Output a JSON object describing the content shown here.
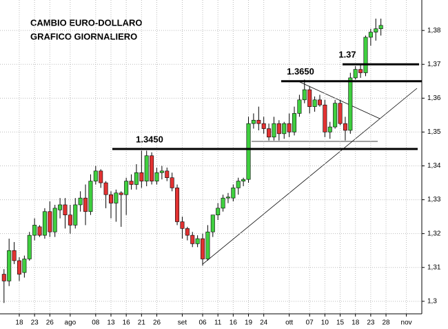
{
  "chart_data": {
    "type": "candlestick",
    "title": "CAMBIO EURO-DOLLARO",
    "subtitle": "GRAFICO GIORNALIERO",
    "categories": [
      null,
      null,
      null,
      "18",
      null,
      null,
      "23",
      null,
      null,
      "26",
      null,
      null,
      null,
      "ago",
      null,
      null,
      null,
      null,
      "08",
      null,
      null,
      "13",
      null,
      null,
      "16",
      null,
      null,
      "21",
      null,
      null,
      "26",
      null,
      null,
      null,
      null,
      "set",
      null,
      null,
      null,
      "06",
      null,
      null,
      "11",
      null,
      null,
      "16",
      null,
      null,
      "19",
      null,
      null,
      "24",
      null,
      null,
      null,
      null,
      "ott",
      null,
      null,
      null,
      "07",
      null,
      null,
      "10",
      null,
      null,
      "15",
      null,
      null,
      "18",
      null,
      null,
      "23",
      null,
      null,
      "28",
      null,
      null,
      null,
      "nov"
    ],
    "open": [
      1.308,
      1.306,
      1.315,
      1.312,
      1.3085,
      1.3125,
      1.3195,
      1.322,
      1.3195,
      1.3265,
      1.3205,
      1.327,
      1.3285,
      1.3255,
      1.3225,
      1.3285,
      1.3305,
      1.3265,
      1.3355,
      1.3385,
      1.335,
      1.3315,
      1.329,
      1.332,
      1.3315,
      1.3355,
      1.3345,
      1.338,
      1.3355,
      1.343,
      1.3355,
      1.338,
      1.3385,
      1.3365,
      1.3335,
      1.3235,
      1.3215,
      1.3195,
      1.317,
      1.3185,
      1.3125,
      1.3205,
      1.3255,
      1.3275,
      1.3305,
      1.3305,
      1.3335,
      1.3355,
      1.336,
      1.3525,
      1.3535,
      1.3525,
      1.351,
      1.3485,
      1.3525,
      1.3495,
      1.3525,
      1.35,
      1.3555,
      1.3595,
      1.3625,
      1.3575,
      1.3595,
      1.358,
      1.35,
      1.3515,
      1.3585,
      1.3525,
      1.3505,
      1.366,
      1.3685,
      1.3675,
      1.378,
      1.3795,
      1.3805,
      null,
      null,
      null,
      null,
      null
    ],
    "high": [
      1.3095,
      1.3185,
      1.3175,
      1.313,
      1.3135,
      1.3205,
      1.3245,
      1.3225,
      1.3275,
      1.3295,
      1.3285,
      1.3305,
      1.3305,
      1.3285,
      1.3305,
      1.3325,
      1.3345,
      1.3375,
      1.34,
      1.339,
      1.3355,
      1.3325,
      1.333,
      1.3325,
      1.3365,
      1.3375,
      1.3405,
      1.3445,
      1.3445,
      1.344,
      1.3395,
      1.34,
      1.3395,
      1.338,
      1.3345,
      1.325,
      1.322,
      1.3205,
      1.3195,
      1.32,
      1.3225,
      1.3255,
      1.329,
      1.3315,
      1.332,
      1.3345,
      1.3365,
      1.3365,
      1.3545,
      1.3555,
      1.3575,
      1.3545,
      1.3525,
      1.3545,
      1.3535,
      1.353,
      1.3555,
      1.3575,
      1.361,
      1.3655,
      1.3635,
      1.3605,
      1.361,
      1.3595,
      1.353,
      1.3595,
      1.3595,
      1.3545,
      1.3675,
      1.3695,
      1.37,
      1.3785,
      1.3805,
      1.3835,
      1.3835,
      null,
      null,
      null,
      null,
      null
    ],
    "low": [
      1.2995,
      1.3045,
      1.311,
      1.306,
      1.307,
      1.312,
      1.318,
      1.319,
      1.3185,
      1.319,
      1.319,
      1.3245,
      1.3215,
      1.32,
      1.3215,
      1.3265,
      1.3225,
      1.3255,
      1.3345,
      1.3335,
      1.3275,
      1.3245,
      1.3235,
      1.322,
      1.3255,
      1.333,
      1.333,
      1.3335,
      1.334,
      1.3345,
      1.3345,
      1.336,
      1.3355,
      1.3325,
      1.3225,
      1.3185,
      1.318,
      1.316,
      1.316,
      1.3105,
      1.312,
      1.319,
      1.324,
      1.3265,
      1.329,
      1.3295,
      1.3315,
      1.334,
      1.335,
      1.351,
      1.3505,
      1.3495,
      1.3475,
      1.3475,
      1.3475,
      1.348,
      1.3485,
      1.349,
      1.3545,
      1.3585,
      1.3555,
      1.356,
      1.3575,
      1.3485,
      1.348,
      1.351,
      1.352,
      1.3475,
      1.3495,
      1.3655,
      1.366,
      1.3665,
      1.3755,
      1.377,
      1.3785,
      null,
      null,
      null,
      null,
      null
    ],
    "close": [
      1.306,
      1.315,
      1.312,
      1.308,
      1.3125,
      1.3195,
      1.3225,
      1.3195,
      1.3265,
      1.3205,
      1.3275,
      1.3285,
      1.3255,
      1.3225,
      1.3285,
      1.3305,
      1.3265,
      1.3355,
      1.3385,
      1.335,
      1.3315,
      1.329,
      1.332,
      1.3315,
      1.3355,
      1.3345,
      1.338,
      1.3355,
      1.343,
      1.3355,
      1.338,
      1.3385,
      1.3365,
      1.3335,
      1.3235,
      1.3215,
      1.3195,
      1.317,
      1.3185,
      1.3125,
      1.3205,
      1.3255,
      1.3275,
      1.3305,
      1.3308,
      1.3335,
      1.3355,
      1.336,
      1.3525,
      1.3535,
      1.3525,
      1.351,
      1.3485,
      1.3525,
      1.3495,
      1.3525,
      1.35,
      1.3555,
      1.3595,
      1.3625,
      1.3575,
      1.3595,
      1.358,
      1.35,
      1.3515,
      1.3585,
      1.3525,
      1.3505,
      1.366,
      1.3685,
      1.3675,
      1.378,
      1.3795,
      1.3805,
      1.3815,
      null,
      null,
      null,
      null,
      null
    ],
    "up_color": "#3fcf3f",
    "down_color": "#e23232",
    "ylim": [
      1.2963,
      1.389
    ],
    "yticks": [
      {
        "value": 1.3,
        "label": "1,3"
      },
      {
        "value": 1.31,
        "label": "1,31"
      },
      {
        "value": 1.32,
        "label": "1,32"
      },
      {
        "value": 1.33,
        "label": "1,33"
      },
      {
        "value": 1.34,
        "label": "1,34"
      },
      {
        "value": 1.35,
        "label": "1,35"
      },
      {
        "value": 1.36,
        "label": "1,36"
      },
      {
        "value": 1.37,
        "label": "1,37"
      },
      {
        "value": 1.38,
        "label": "1,38"
      }
    ],
    "grid": true,
    "levels": [
      {
        "text": "1.3450",
        "value": 1.345
      },
      {
        "text": "1.3650",
        "value": 1.365
      },
      {
        "text": "1.37",
        "value": 1.37
      }
    ]
  }
}
